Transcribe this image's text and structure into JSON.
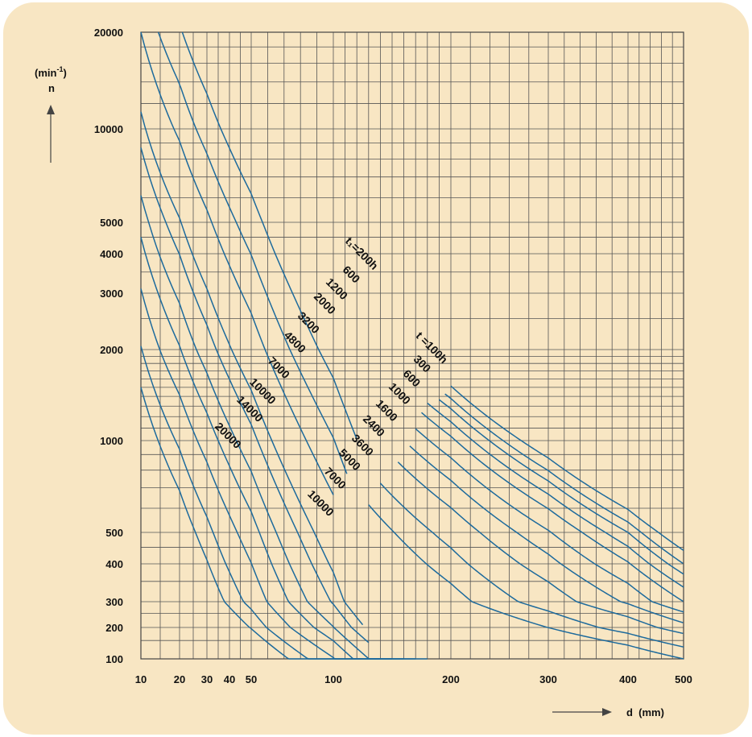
{
  "chart_data": {
    "type": "line",
    "y_unit_label": "(min",
    "y_unit_sup": "-1",
    "y_unit_close": ")",
    "y_symbol": "n",
    "x_label": "d  (mm)",
    "x_ticks": [
      "10",
      "20",
      "30",
      "40",
      "50",
      "100",
      "200",
      "300",
      "400",
      "500"
    ],
    "y_ticks": [
      "20000",
      "10000",
      "5000",
      "4000",
      "3000",
      "2000",
      "1000",
      "500",
      "400",
      "300",
      "200",
      "100"
    ],
    "x_range": [
      10,
      500
    ],
    "y_range": [
      100,
      20000
    ],
    "grid": true,
    "series_groups": [
      {
        "label_prefix": "t",
        "labels": [
          "t₁=200h",
          "600",
          "1200",
          "2000",
          "3200",
          "4800",
          "7000",
          "10000",
          "14000",
          "20000"
        ],
        "curves": [
          {
            "n_at_d10": 20000,
            "end_d": 100
          },
          {
            "n_at_d10": 20000,
            "end_d": 115
          },
          {
            "n_at_d10": 20000,
            "end_d": 120
          },
          {
            "n_at_d10": 11300,
            "end_d": 125
          },
          {
            "n_at_d10": 8700,
            "end_d": 130
          },
          {
            "n_at_d10": 6100,
            "end_d": 140
          },
          {
            "n_at_d10": 4500,
            "end_d": 150
          },
          {
            "n_at_d10": 3100,
            "end_d": 160
          },
          {
            "n_at_d10": 2050,
            "end_d": 170
          },
          {
            "n_at_d10": 1500,
            "end_d": 180
          }
        ]
      },
      {
        "labels": [
          "t =100h",
          "300",
          "600",
          "1000",
          "1600",
          "2400",
          "3600",
          "5000",
          "7000",
          "10000"
        ],
        "curves": [
          {
            "n_at_d500": 440
          },
          {
            "n_at_d500": 400
          },
          {
            "n_at_d500": 370
          },
          {
            "n_at_d500": 335
          },
          {
            "n_at_d500": 300
          },
          {
            "n_at_d500": 255
          },
          {
            "n_at_d500": 215
          },
          {
            "n_at_d500": 175
          },
          {
            "n_at_d500": 130
          },
          {
            "n_at_d500": 100
          }
        ]
      }
    ]
  }
}
